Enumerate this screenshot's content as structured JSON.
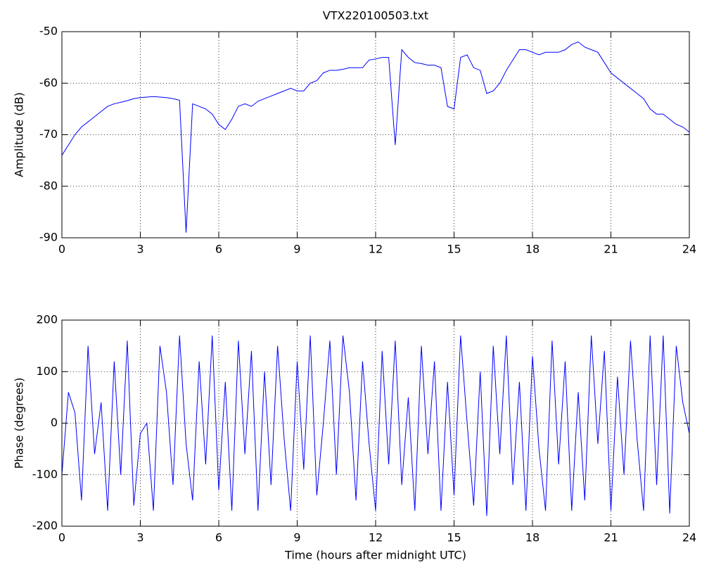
{
  "chart_data": [
    {
      "type": "line",
      "title": "VTX220100503.txt",
      "ylabel": "Amplitude (dB)",
      "grid": true,
      "xlim": [
        0,
        24
      ],
      "xticks": [
        0,
        3,
        6,
        9,
        12,
        15,
        18,
        21,
        24
      ],
      "ylim": [
        -90,
        -50
      ],
      "yticks": [
        -90,
        -80,
        -70,
        -60,
        -50
      ],
      "x": [
        0,
        0.25,
        0.5,
        0.75,
        1,
        1.25,
        1.5,
        1.75,
        2,
        2.25,
        2.5,
        2.75,
        3,
        3.25,
        3.5,
        3.75,
        4,
        4.25,
        4.5,
        4.75,
        5,
        5.25,
        5.5,
        5.75,
        6,
        6.25,
        6.5,
        6.75,
        7,
        7.25,
        7.5,
        7.75,
        8,
        8.25,
        8.5,
        8.75,
        9,
        9.25,
        9.5,
        9.75,
        10,
        10.25,
        10.5,
        10.75,
        11,
        11.25,
        11.5,
        11.75,
        12,
        12.25,
        12.5,
        12.75,
        13,
        13.25,
        13.5,
        13.75,
        14,
        14.25,
        14.5,
        14.75,
        15,
        15.25,
        15.5,
        15.75,
        16,
        16.25,
        16.5,
        16.75,
        17,
        17.25,
        17.5,
        17.75,
        18,
        18.25,
        18.5,
        18.75,
        19,
        19.25,
        19.5,
        19.75,
        20,
        20.25,
        20.5,
        20.75,
        21,
        21.25,
        21.5,
        21.75,
        22,
        22.25,
        22.5,
        22.75,
        23,
        23.25,
        23.5,
        23.75,
        24
      ],
      "series": [
        {
          "color": "#0000ff",
          "values": [
            -74,
            -72,
            -70,
            -68.5,
            -67.5,
            -66.5,
            -65.5,
            -64.5,
            -64,
            -63.7,
            -63.4,
            -63,
            -62.8,
            -62.7,
            -62.6,
            -62.7,
            -62.8,
            -63,
            -63.3,
            -89,
            -64,
            -64.5,
            -65,
            -66,
            -68,
            -69,
            -67,
            -64.5,
            -64,
            -64.5,
            -63.5,
            -63,
            -62.5,
            -62,
            -61.5,
            -61,
            -61.5,
            -61.5,
            -60,
            -59.5,
            -58,
            -57.5,
            -57.5,
            -57.3,
            -57,
            -57,
            -57,
            -55.5,
            -55.3,
            -55,
            -55,
            -72,
            -53.5,
            -55,
            -56,
            -56.2,
            -56.5,
            -56.5,
            -57,
            -64.5,
            -65,
            -55,
            -54.5,
            -57,
            -57.5,
            -62,
            -61.5,
            -60,
            -57.5,
            -55.5,
            -53.5,
            -53.5,
            -54,
            -54.5,
            -54,
            -54,
            -54,
            -53.5,
            -52.5,
            -52,
            -53,
            -53.5,
            -54,
            -56,
            -58,
            -59,
            -60,
            -61,
            -62,
            -63,
            -65,
            -66,
            -66,
            -67,
            -68,
            -68.5,
            -69.5
          ]
        }
      ]
    },
    {
      "type": "line",
      "xlabel": "Time (hours after midnight UTC)",
      "ylabel": "Phase (degrees)",
      "grid": true,
      "xlim": [
        0,
        24
      ],
      "xticks": [
        0,
        3,
        6,
        9,
        12,
        15,
        18,
        21,
        24
      ],
      "ylim": [
        -200,
        200
      ],
      "yticks": [
        -200,
        -100,
        0,
        100,
        200
      ],
      "x": [
        0,
        0.25,
        0.5,
        0.75,
        1,
        1.25,
        1.5,
        1.75,
        2,
        2.25,
        2.5,
        2.75,
        3,
        3.25,
        3.5,
        3.75,
        4,
        4.25,
        4.5,
        4.75,
        5,
        5.25,
        5.5,
        5.75,
        6,
        6.25,
        6.5,
        6.75,
        7,
        7.25,
        7.5,
        7.75,
        8,
        8.25,
        8.5,
        8.75,
        9,
        9.25,
        9.5,
        9.75,
        10,
        10.25,
        10.5,
        10.75,
        11,
        11.25,
        11.5,
        11.75,
        12,
        12.25,
        12.5,
        12.75,
        13,
        13.25,
        13.5,
        13.75,
        14,
        14.25,
        14.5,
        14.75,
        15,
        15.25,
        15.5,
        15.75,
        16,
        16.25,
        16.5,
        16.75,
        17,
        17.25,
        17.5,
        17.75,
        18,
        18.25,
        18.5,
        18.75,
        19,
        19.25,
        19.5,
        19.75,
        20,
        20.25,
        20.5,
        20.75,
        21,
        21.25,
        21.5,
        21.75,
        22,
        22.25,
        22.5,
        22.75,
        23,
        23.25,
        23.5,
        23.75,
        24
      ],
      "series": [
        {
          "color": "#0000ff",
          "values": [
            -100,
            60,
            20,
            -150,
            150,
            -60,
            40,
            -170,
            120,
            -100,
            160,
            -160,
            -20,
            0,
            -170,
            150,
            60,
            -120,
            170,
            -40,
            -150,
            120,
            -80,
            170,
            -130,
            80,
            -170,
            160,
            -60,
            140,
            -170,
            100,
            -120,
            150,
            -30,
            -170,
            120,
            -90,
            170,
            -140,
            0,
            160,
            -100,
            170,
            60,
            -150,
            120,
            -40,
            -170,
            140,
            -80,
            160,
            -120,
            50,
            -170,
            150,
            -60,
            120,
            -170,
            80,
            -140,
            170,
            0,
            -160,
            100,
            -180,
            150,
            -60,
            170,
            -120,
            80,
            -170,
            130,
            -50,
            -170,
            160,
            -80,
            120,
            -170,
            60,
            -150,
            170,
            -40,
            140,
            -170,
            90,
            -100,
            160,
            -30,
            -170,
            170,
            -120,
            170,
            -175,
            150,
            40,
            -20
          ]
        }
      ]
    }
  ]
}
